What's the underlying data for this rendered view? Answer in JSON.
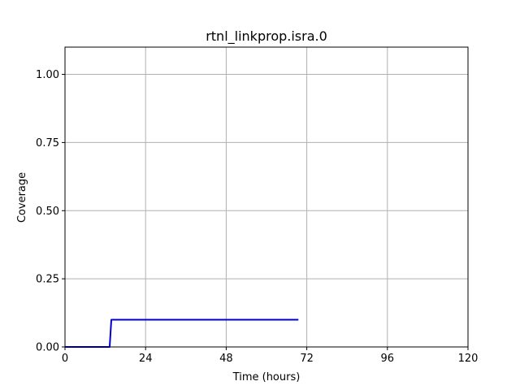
{
  "chart_data": {
    "type": "line",
    "title": "rtnl_linkprop.isra.0",
    "xlabel": "Time (hours)",
    "ylabel": "Coverage",
    "xlim": [
      0,
      120
    ],
    "ylim": [
      0,
      1.1
    ],
    "xticks": [
      0,
      24,
      48,
      72,
      96,
      120
    ],
    "xtick_labels": [
      "0",
      "24",
      "48",
      "72",
      "96",
      "120"
    ],
    "yticks": [
      0,
      0.25,
      0.5,
      0.75,
      1.0
    ],
    "ytick_labels": [
      "0.00",
      "0.25",
      "0.50",
      "0.75",
      "1.00"
    ],
    "grid": true,
    "series": [
      {
        "color": "#0000cc",
        "x": [
          0,
          13.3,
          13.8,
          69.5
        ],
        "y": [
          0,
          0,
          0.1,
          0.1
        ]
      }
    ]
  }
}
